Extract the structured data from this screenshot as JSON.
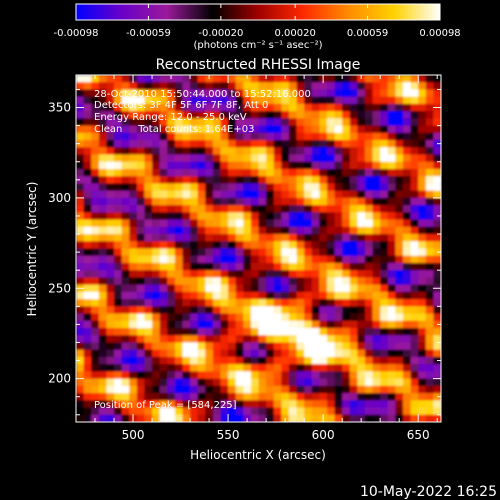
{
  "colorbar": {
    "tick_labels": [
      "-0.00098",
      "-0.00059",
      "-0.00020",
      "0.00020",
      "0.00059",
      "0.00098"
    ],
    "tick_values": [
      -0.00098,
      -0.00059,
      -0.0002,
      0.0002,
      0.00059,
      0.00098
    ],
    "range": [
      -0.00098,
      0.00098
    ],
    "units": "(photons cm⁻² s⁻¹ asec⁻²)",
    "colormap": [
      "#0000ff",
      "#6a00c8",
      "#9a1a9a",
      "#000000",
      "#a00000",
      "#ff2a00",
      "#ff8c00",
      "#ffd200",
      "#ffffff"
    ]
  },
  "plot": {
    "title": "Reconstructed RHESSI Image",
    "info_lines": [
      "28-Oct-2010 15:50:44.000 to 15:52:16.000",
      "Detectors: 3F 4F 5F 6F 7F 8F, Att 0",
      "Energy Range: 12.0 - 25.0 keV",
      "Clean     Total counts: 1.64E+03"
    ],
    "peak_label": "Position of Peak = [584,225]",
    "xlabel": "Heliocentric X (arcsec)",
    "ylabel": "Heliocentric Y (arcsec)",
    "xlim": [
      470,
      662
    ],
    "ylim": [
      176,
      368
    ],
    "xticks": [
      {
        "value": 500,
        "label": "500"
      },
      {
        "value": 550,
        "label": "550"
      },
      {
        "value": 600,
        "label": "600"
      },
      {
        "value": 650,
        "label": "650"
      }
    ],
    "yticks": [
      {
        "value": 200,
        "label": "200"
      },
      {
        "value": 250,
        "label": "250"
      },
      {
        "value": 300,
        "label": "300"
      },
      {
        "value": 350,
        "label": "350"
      }
    ],
    "peak": [
      584,
      225
    ]
  },
  "footer": {
    "date": "10-May-2022 16:25"
  }
}
